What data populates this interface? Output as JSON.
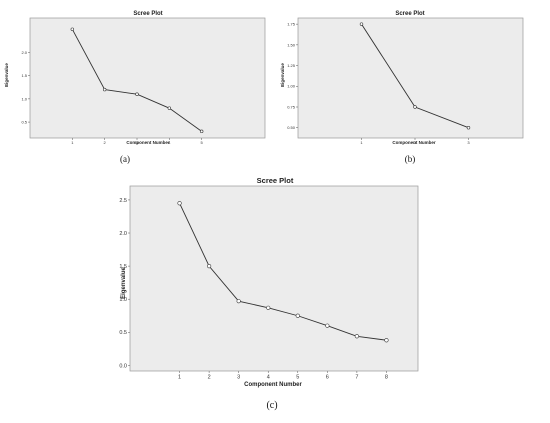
{
  "chart_data": [
    {
      "type": "line",
      "caption": "(a)",
      "title": "Scree Plot",
      "xlabel": "Component Number",
      "ylabel": "Eigenvalue",
      "x": [
        "1",
        "2",
        "3",
        "4",
        "5"
      ],
      "values": [
        2.5,
        1.2,
        1.1,
        0.8,
        0.3
      ],
      "y_ticks": [
        "0.5",
        "1.0",
        "1.5",
        "2.0"
      ],
      "y_tick_values": [
        0.5,
        1.0,
        1.5,
        2.0
      ],
      "ylim": [
        0.2,
        2.7
      ],
      "grid": false
    },
    {
      "type": "line",
      "caption": "(b)",
      "title": "Scree Plot",
      "xlabel": "Component Number",
      "ylabel": "Eigenvalue",
      "x": [
        "1",
        "2",
        "3"
      ],
      "values": [
        1.75,
        0.75,
        0.5
      ],
      "y_ticks": [
        "0.50",
        "0.75",
        "1.00",
        "1.25",
        "1.50",
        "1.75"
      ],
      "y_tick_values": [
        0.5,
        0.75,
        1.0,
        1.25,
        1.5,
        1.75
      ],
      "ylim": [
        0.4,
        1.8
      ],
      "grid": false
    },
    {
      "type": "line",
      "caption": "(c)",
      "title": "Scree Plot",
      "xlabel": "Component Number",
      "ylabel": "Eigenvalue",
      "x": [
        "1",
        "2",
        "3",
        "4",
        "5",
        "6",
        "7",
        "8"
      ],
      "values": [
        2.45,
        1.5,
        0.97,
        0.87,
        0.75,
        0.6,
        0.44,
        0.38
      ],
      "y_ticks": [
        "0.0",
        "0.5",
        "1.0",
        "1.5",
        "2.0",
        "2.5"
      ],
      "y_tick_values": [
        0.0,
        0.5,
        1.0,
        1.5,
        2.0,
        2.5
      ],
      "ylim": [
        -0.1,
        2.65
      ],
      "grid": false
    }
  ],
  "colors": {
    "plot_bg": "#ececec",
    "line": "#333333",
    "frame": "#999999"
  }
}
